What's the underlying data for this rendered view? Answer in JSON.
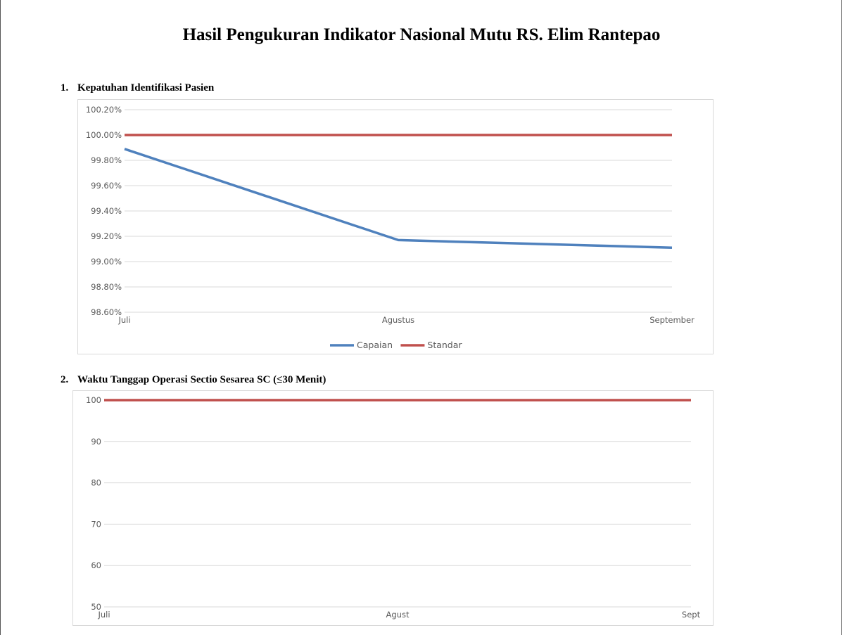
{
  "document": {
    "title": "Hasil Pengukuran Indikator Nasional Mutu RS. Elim Rantepao"
  },
  "sections": [
    {
      "number": "1.",
      "title": "Kepatuhan Identifikasi Pasien"
    },
    {
      "number": "2.",
      "title": "Waktu Tanggap Operasi Sectio Sesarea SC (≤30 Menit)"
    }
  ],
  "colors": {
    "capaian": "#4f81bd",
    "standar": "#c0504d",
    "grid": "#d9d9d9",
    "axis_text": "#595959"
  },
  "chart_data": [
    {
      "type": "line",
      "categories": [
        "Juli",
        "Agustus",
        "September"
      ],
      "series": [
        {
          "name": "Capaian",
          "values": [
            99.89,
            99.17,
            99.11
          ],
          "color": "#4f81bd"
        },
        {
          "name": "Standar",
          "values": [
            100.0,
            100.0,
            100.0
          ],
          "color": "#c0504d"
        }
      ],
      "ylim": [
        98.6,
        100.2
      ],
      "yticks": [
        "100.20%",
        "100.00%",
        "99.80%",
        "99.60%",
        "99.40%",
        "99.20%",
        "99.00%",
        "98.80%",
        "98.60%"
      ],
      "grid": true,
      "legend_position": "bottom"
    },
    {
      "type": "line",
      "categories": [
        "Juli",
        "Agust",
        "Sept"
      ],
      "series": [
        {
          "values": [
            100,
            100,
            100
          ],
          "color": "#c0504d"
        }
      ],
      "ylim": [
        50,
        100
      ],
      "yticks": [
        "100",
        "90",
        "80",
        "70",
        "60",
        "50"
      ],
      "grid": true
    }
  ]
}
